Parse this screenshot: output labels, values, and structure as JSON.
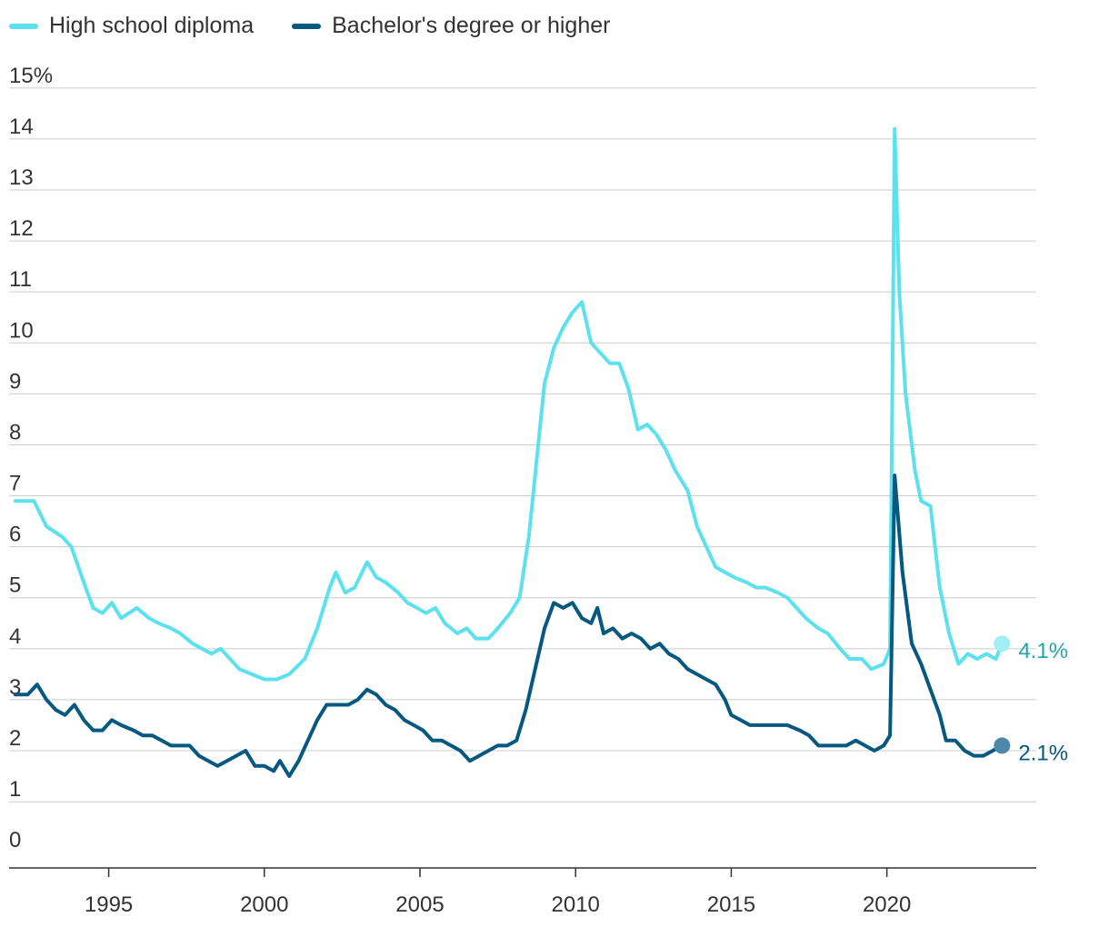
{
  "legend": {
    "hs_label": "High school diploma",
    "ba_label": "Bachelor's degree or higher"
  },
  "colors": {
    "hs": "#5ce1ee",
    "ba": "#05587f",
    "hs_label": "#23a5ad",
    "ba_label": "#05587f",
    "grid": "#cccccc",
    "axis": "#333333"
  },
  "chart_data": {
    "type": "line",
    "y_ticks": [
      {
        "value": 0,
        "label": "0"
      },
      {
        "value": 1,
        "label": "1"
      },
      {
        "value": 2,
        "label": "2"
      },
      {
        "value": 3,
        "label": "3"
      },
      {
        "value": 4,
        "label": "4"
      },
      {
        "value": 5,
        "label": "5"
      },
      {
        "value": 6,
        "label": "6"
      },
      {
        "value": 7,
        "label": "7"
      },
      {
        "value": 8,
        "label": "8"
      },
      {
        "value": 9,
        "label": "9"
      },
      {
        "value": 10,
        "label": "10"
      },
      {
        "value": 11,
        "label": "11"
      },
      {
        "value": 12,
        "label": "12"
      },
      {
        "value": 13,
        "label": "13"
      },
      {
        "value": 14,
        "label": "14"
      },
      {
        "value": 15,
        "label": "15%"
      }
    ],
    "x_ticks": [
      {
        "value": 1995,
        "label": "1995"
      },
      {
        "value": 2000,
        "label": "2000"
      },
      {
        "value": 2005,
        "label": "2005"
      },
      {
        "value": 2010,
        "label": "2010"
      },
      {
        "value": 2015,
        "label": "2015"
      },
      {
        "value": 2020,
        "label": "2020"
      }
    ],
    "xlim": [
      1991.8,
      2024.8
    ],
    "ylim": [
      -0.3,
      15.3
    ],
    "grid": true,
    "series": [
      {
        "name": "High school diploma",
        "end_label": "4.1%",
        "points": [
          [
            1992.0,
            6.9
          ],
          [
            1992.6,
            6.9
          ],
          [
            1993.0,
            6.4
          ],
          [
            1993.5,
            6.2
          ],
          [
            1993.8,
            6.0
          ],
          [
            1994.2,
            5.3
          ],
          [
            1994.5,
            4.8
          ],
          [
            1994.8,
            4.7
          ],
          [
            1995.1,
            4.9
          ],
          [
            1995.4,
            4.6
          ],
          [
            1995.9,
            4.8
          ],
          [
            1996.3,
            4.6
          ],
          [
            1996.6,
            4.5
          ],
          [
            1997.0,
            4.4
          ],
          [
            1997.3,
            4.3
          ],
          [
            1997.7,
            4.1
          ],
          [
            1998.0,
            4.0
          ],
          [
            1998.3,
            3.9
          ],
          [
            1998.6,
            4.0
          ],
          [
            1998.9,
            3.8
          ],
          [
            1999.2,
            3.6
          ],
          [
            1999.6,
            3.5
          ],
          [
            2000.0,
            3.4
          ],
          [
            2000.4,
            3.4
          ],
          [
            2000.8,
            3.5
          ],
          [
            2001.3,
            3.8
          ],
          [
            2001.7,
            4.4
          ],
          [
            2002.1,
            5.2
          ],
          [
            2002.3,
            5.5
          ],
          [
            2002.6,
            5.1
          ],
          [
            2002.9,
            5.2
          ],
          [
            2003.3,
            5.7
          ],
          [
            2003.6,
            5.4
          ],
          [
            2003.9,
            5.3
          ],
          [
            2004.3,
            5.1
          ],
          [
            2004.6,
            4.9
          ],
          [
            2004.9,
            4.8
          ],
          [
            2005.2,
            4.7
          ],
          [
            2005.5,
            4.8
          ],
          [
            2005.8,
            4.5
          ],
          [
            2006.2,
            4.3
          ],
          [
            2006.5,
            4.4
          ],
          [
            2006.8,
            4.2
          ],
          [
            2007.2,
            4.2
          ],
          [
            2007.5,
            4.4
          ],
          [
            2007.9,
            4.7
          ],
          [
            2008.2,
            5.0
          ],
          [
            2008.5,
            6.2
          ],
          [
            2008.8,
            8.0
          ],
          [
            2009.0,
            9.2
          ],
          [
            2009.3,
            9.9
          ],
          [
            2009.6,
            10.3
          ],
          [
            2009.9,
            10.6
          ],
          [
            2010.2,
            10.8
          ],
          [
            2010.5,
            10.0
          ],
          [
            2010.8,
            9.8
          ],
          [
            2011.1,
            9.6
          ],
          [
            2011.4,
            9.6
          ],
          [
            2011.7,
            9.1
          ],
          [
            2012.0,
            8.3
          ],
          [
            2012.3,
            8.4
          ],
          [
            2012.6,
            8.2
          ],
          [
            2012.9,
            7.9
          ],
          [
            2013.2,
            7.5
          ],
          [
            2013.6,
            7.1
          ],
          [
            2013.9,
            6.4
          ],
          [
            2014.2,
            6.0
          ],
          [
            2014.5,
            5.6
          ],
          [
            2014.8,
            5.5
          ],
          [
            2015.1,
            5.4
          ],
          [
            2015.5,
            5.3
          ],
          [
            2015.8,
            5.2
          ],
          [
            2016.1,
            5.2
          ],
          [
            2016.5,
            5.1
          ],
          [
            2016.8,
            5.0
          ],
          [
            2017.1,
            4.8
          ],
          [
            2017.4,
            4.6
          ],
          [
            2017.8,
            4.4
          ],
          [
            2018.1,
            4.3
          ],
          [
            2018.5,
            4.0
          ],
          [
            2018.8,
            3.8
          ],
          [
            2019.2,
            3.8
          ],
          [
            2019.5,
            3.6
          ],
          [
            2019.9,
            3.7
          ],
          [
            2020.1,
            4.0
          ],
          [
            2020.25,
            14.2
          ],
          [
            2020.4,
            11.0
          ],
          [
            2020.6,
            9.0
          ],
          [
            2020.9,
            7.5
          ],
          [
            2021.1,
            6.9
          ],
          [
            2021.4,
            6.8
          ],
          [
            2021.7,
            5.2
          ],
          [
            2022.0,
            4.3
          ],
          [
            2022.3,
            3.7
          ],
          [
            2022.6,
            3.9
          ],
          [
            2022.9,
            3.8
          ],
          [
            2023.2,
            3.9
          ],
          [
            2023.5,
            3.8
          ],
          [
            2023.7,
            4.1
          ]
        ]
      },
      {
        "name": "Bachelor's degree or higher",
        "end_label": "2.1%",
        "points": [
          [
            1992.0,
            3.1
          ],
          [
            1992.4,
            3.1
          ],
          [
            1992.7,
            3.3
          ],
          [
            1993.0,
            3.0
          ],
          [
            1993.3,
            2.8
          ],
          [
            1993.6,
            2.7
          ],
          [
            1993.9,
            2.9
          ],
          [
            1994.2,
            2.6
          ],
          [
            1994.5,
            2.4
          ],
          [
            1994.8,
            2.4
          ],
          [
            1995.1,
            2.6
          ],
          [
            1995.4,
            2.5
          ],
          [
            1995.8,
            2.4
          ],
          [
            1996.1,
            2.3
          ],
          [
            1996.4,
            2.3
          ],
          [
            1996.7,
            2.2
          ],
          [
            1997.0,
            2.1
          ],
          [
            1997.3,
            2.1
          ],
          [
            1997.6,
            2.1
          ],
          [
            1997.9,
            1.9
          ],
          [
            1998.2,
            1.8
          ],
          [
            1998.5,
            1.7
          ],
          [
            1998.8,
            1.8
          ],
          [
            1999.1,
            1.9
          ],
          [
            1999.4,
            2.0
          ],
          [
            1999.7,
            1.7
          ],
          [
            2000.0,
            1.7
          ],
          [
            2000.3,
            1.6
          ],
          [
            2000.5,
            1.8
          ],
          [
            2000.8,
            1.5
          ],
          [
            2001.1,
            1.8
          ],
          [
            2001.4,
            2.2
          ],
          [
            2001.7,
            2.6
          ],
          [
            2002.0,
            2.9
          ],
          [
            2002.3,
            2.9
          ],
          [
            2002.7,
            2.9
          ],
          [
            2003.0,
            3.0
          ],
          [
            2003.3,
            3.2
          ],
          [
            2003.6,
            3.1
          ],
          [
            2003.9,
            2.9
          ],
          [
            2004.2,
            2.8
          ],
          [
            2004.5,
            2.6
          ],
          [
            2004.8,
            2.5
          ],
          [
            2005.1,
            2.4
          ],
          [
            2005.4,
            2.2
          ],
          [
            2005.7,
            2.2
          ],
          [
            2006.0,
            2.1
          ],
          [
            2006.3,
            2.0
          ],
          [
            2006.6,
            1.8
          ],
          [
            2006.9,
            1.9
          ],
          [
            2007.2,
            2.0
          ],
          [
            2007.5,
            2.1
          ],
          [
            2007.8,
            2.1
          ],
          [
            2008.1,
            2.2
          ],
          [
            2008.4,
            2.8
          ],
          [
            2008.7,
            3.6
          ],
          [
            2009.0,
            4.4
          ],
          [
            2009.3,
            4.9
          ],
          [
            2009.6,
            4.8
          ],
          [
            2009.9,
            4.9
          ],
          [
            2010.2,
            4.6
          ],
          [
            2010.5,
            4.5
          ],
          [
            2010.7,
            4.8
          ],
          [
            2010.9,
            4.3
          ],
          [
            2011.2,
            4.4
          ],
          [
            2011.5,
            4.2
          ],
          [
            2011.8,
            4.3
          ],
          [
            2012.1,
            4.2
          ],
          [
            2012.4,
            4.0
          ],
          [
            2012.7,
            4.1
          ],
          [
            2013.0,
            3.9
          ],
          [
            2013.3,
            3.8
          ],
          [
            2013.6,
            3.6
          ],
          [
            2013.9,
            3.5
          ],
          [
            2014.2,
            3.4
          ],
          [
            2014.5,
            3.3
          ],
          [
            2014.8,
            3.0
          ],
          [
            2015.0,
            2.7
          ],
          [
            2015.3,
            2.6
          ],
          [
            2015.6,
            2.5
          ],
          [
            2016.0,
            2.5
          ],
          [
            2016.4,
            2.5
          ],
          [
            2016.8,
            2.5
          ],
          [
            2017.2,
            2.4
          ],
          [
            2017.5,
            2.3
          ],
          [
            2017.8,
            2.1
          ],
          [
            2018.1,
            2.1
          ],
          [
            2018.4,
            2.1
          ],
          [
            2018.7,
            2.1
          ],
          [
            2019.0,
            2.2
          ],
          [
            2019.3,
            2.1
          ],
          [
            2019.6,
            2.0
          ],
          [
            2019.9,
            2.1
          ],
          [
            2020.1,
            2.3
          ],
          [
            2020.25,
            7.4
          ],
          [
            2020.5,
            5.5
          ],
          [
            2020.8,
            4.1
          ],
          [
            2021.1,
            3.7
          ],
          [
            2021.4,
            3.2
          ],
          [
            2021.7,
            2.7
          ],
          [
            2021.9,
            2.2
          ],
          [
            2022.2,
            2.2
          ],
          [
            2022.5,
            2.0
          ],
          [
            2022.8,
            1.9
          ],
          [
            2023.1,
            1.9
          ],
          [
            2023.4,
            2.0
          ],
          [
            2023.7,
            2.1
          ]
        ]
      }
    ]
  }
}
